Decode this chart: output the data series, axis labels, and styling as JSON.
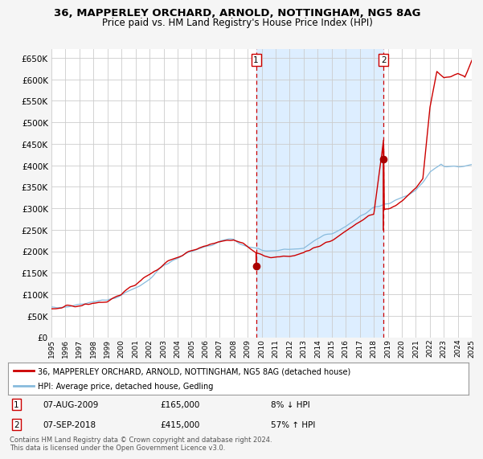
{
  "title": "36, MAPPERLEY ORCHARD, ARNOLD, NOTTINGHAM, NG5 8AG",
  "subtitle": "Price paid vs. HM Land Registry's House Price Index (HPI)",
  "background_color": "#f5f5f5",
  "plot_bg_color": "#ffffff",
  "highlight_bg_color": "#ddeeff",
  "grid_color": "#cccccc",
  "red_line_color": "#cc0000",
  "blue_line_color": "#88bbdd",
  "marker_color": "#aa0000",
  "dashed_line_color": "#cc0000",
  "ylim": [
    0,
    670000
  ],
  "yticks": [
    0,
    50000,
    100000,
    150000,
    200000,
    250000,
    300000,
    350000,
    400000,
    450000,
    500000,
    550000,
    600000,
    650000
  ],
  "ytick_labels": [
    "£0",
    "£50K",
    "£100K",
    "£150K",
    "£200K",
    "£250K",
    "£300K",
    "£350K",
    "£400K",
    "£450K",
    "£500K",
    "£550K",
    "£600K",
    "£650K"
  ],
  "xtick_labels": [
    "1995",
    "1996",
    "1997",
    "1998",
    "1999",
    "2000",
    "2001",
    "2002",
    "2003",
    "2004",
    "2005",
    "2006",
    "2007",
    "2008",
    "2009",
    "2010",
    "2011",
    "2012",
    "2013",
    "2014",
    "2015",
    "2016",
    "2017",
    "2018",
    "2019",
    "2020",
    "2021",
    "2022",
    "2023",
    "2024",
    "2025"
  ],
  "sale1_date": "07-AUG-2009",
  "sale1_price": 165000,
  "sale1_pct": "8% ↓ HPI",
  "sale1_label": "1",
  "sale2_date": "07-SEP-2018",
  "sale2_price": 415000,
  "sale2_pct": "57% ↑ HPI",
  "sale2_label": "2",
  "legend_red": "36, MAPPERLEY ORCHARD, ARNOLD, NOTTINGHAM, NG5 8AG (detached house)",
  "legend_blue": "HPI: Average price, detached house, Gedling",
  "footnote": "Contains HM Land Registry data © Crown copyright and database right 2024.\nThis data is licensed under the Open Government Licence v3.0.",
  "sale1_x": 2009.6,
  "sale2_x": 2018.7
}
